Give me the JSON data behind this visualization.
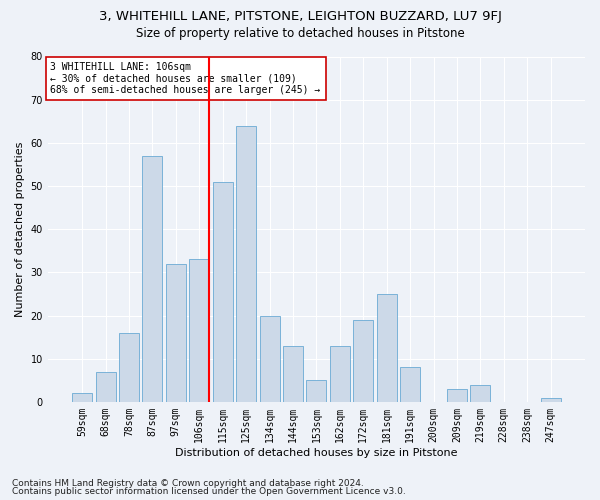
{
  "title1": "3, WHITEHILL LANE, PITSTONE, LEIGHTON BUZZARD, LU7 9FJ",
  "title2": "Size of property relative to detached houses in Pitstone",
  "xlabel": "Distribution of detached houses by size in Pitstone",
  "ylabel": "Number of detached properties",
  "footnote1": "Contains HM Land Registry data © Crown copyright and database right 2024.",
  "footnote2": "Contains public sector information licensed under the Open Government Licence v3.0.",
  "annotation_line1": "3 WHITEHILL LANE: 106sqm",
  "annotation_line2": "← 30% of detached houses are smaller (109)",
  "annotation_line3": "68% of semi-detached houses are larger (245) →",
  "bar_labels": [
    "59sqm",
    "68sqm",
    "78sqm",
    "87sqm",
    "97sqm",
    "106sqm",
    "115sqm",
    "125sqm",
    "134sqm",
    "144sqm",
    "153sqm",
    "162sqm",
    "172sqm",
    "181sqm",
    "191sqm",
    "200sqm",
    "209sqm",
    "219sqm",
    "228sqm",
    "238sqm",
    "247sqm"
  ],
  "bar_values": [
    2,
    7,
    16,
    57,
    32,
    33,
    51,
    64,
    20,
    13,
    5,
    13,
    19,
    25,
    8,
    0,
    3,
    4,
    0,
    0,
    1
  ],
  "bar_color": "#ccd9e8",
  "bar_edge_color": "#6aaad4",
  "vline_color": "red",
  "vline_index": 5,
  "ylim": [
    0,
    80
  ],
  "yticks": [
    0,
    10,
    20,
    30,
    40,
    50,
    60,
    70,
    80
  ],
  "background_color": "#eef2f8",
  "grid_color": "#ffffff",
  "annotation_box_color": "white",
  "annotation_box_edge": "#cc0000",
  "title1_fontsize": 9.5,
  "title2_fontsize": 8.5,
  "axis_label_fontsize": 8,
  "tick_fontsize": 7,
  "annotation_fontsize": 7,
  "footnote_fontsize": 6.5
}
